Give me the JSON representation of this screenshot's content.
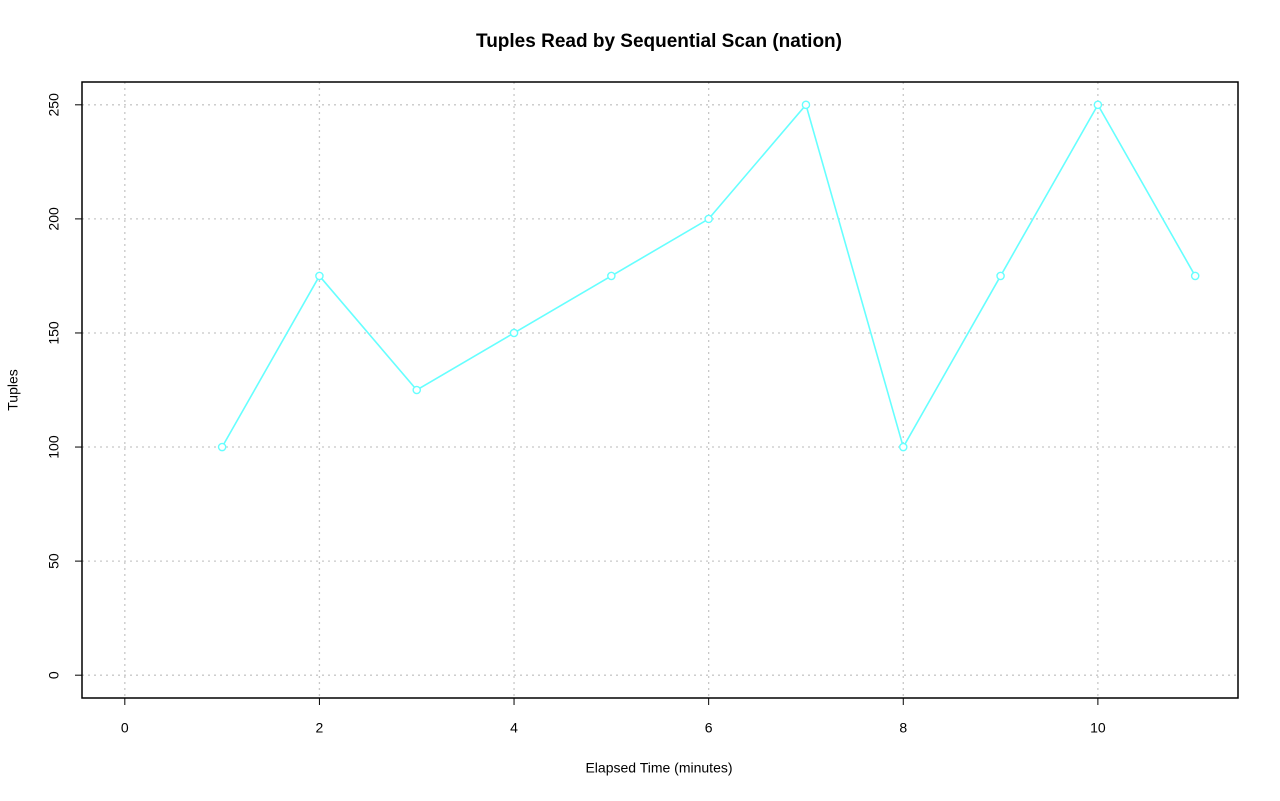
{
  "chart_data": {
    "type": "line",
    "title": "Tuples Read by Sequential Scan (nation)",
    "xlabel": "Elapsed Time (minutes)",
    "ylabel": "Tuples",
    "x": [
      1,
      2,
      3,
      4,
      5,
      6,
      7,
      8,
      9,
      10,
      11
    ],
    "series": [
      {
        "color": "#66ffff",
        "values": [
          100,
          175,
          125,
          150,
          175,
          200,
          250,
          100,
          175,
          250,
          175
        ]
      }
    ],
    "xlim": [
      -0.44,
      11.44
    ],
    "xticks": [
      0,
      2,
      4,
      6,
      8,
      10
    ],
    "ylim": [
      -10,
      260
    ],
    "yticks": [
      0,
      50,
      100,
      150,
      200,
      250
    ],
    "grid": true,
    "markers": true
  }
}
